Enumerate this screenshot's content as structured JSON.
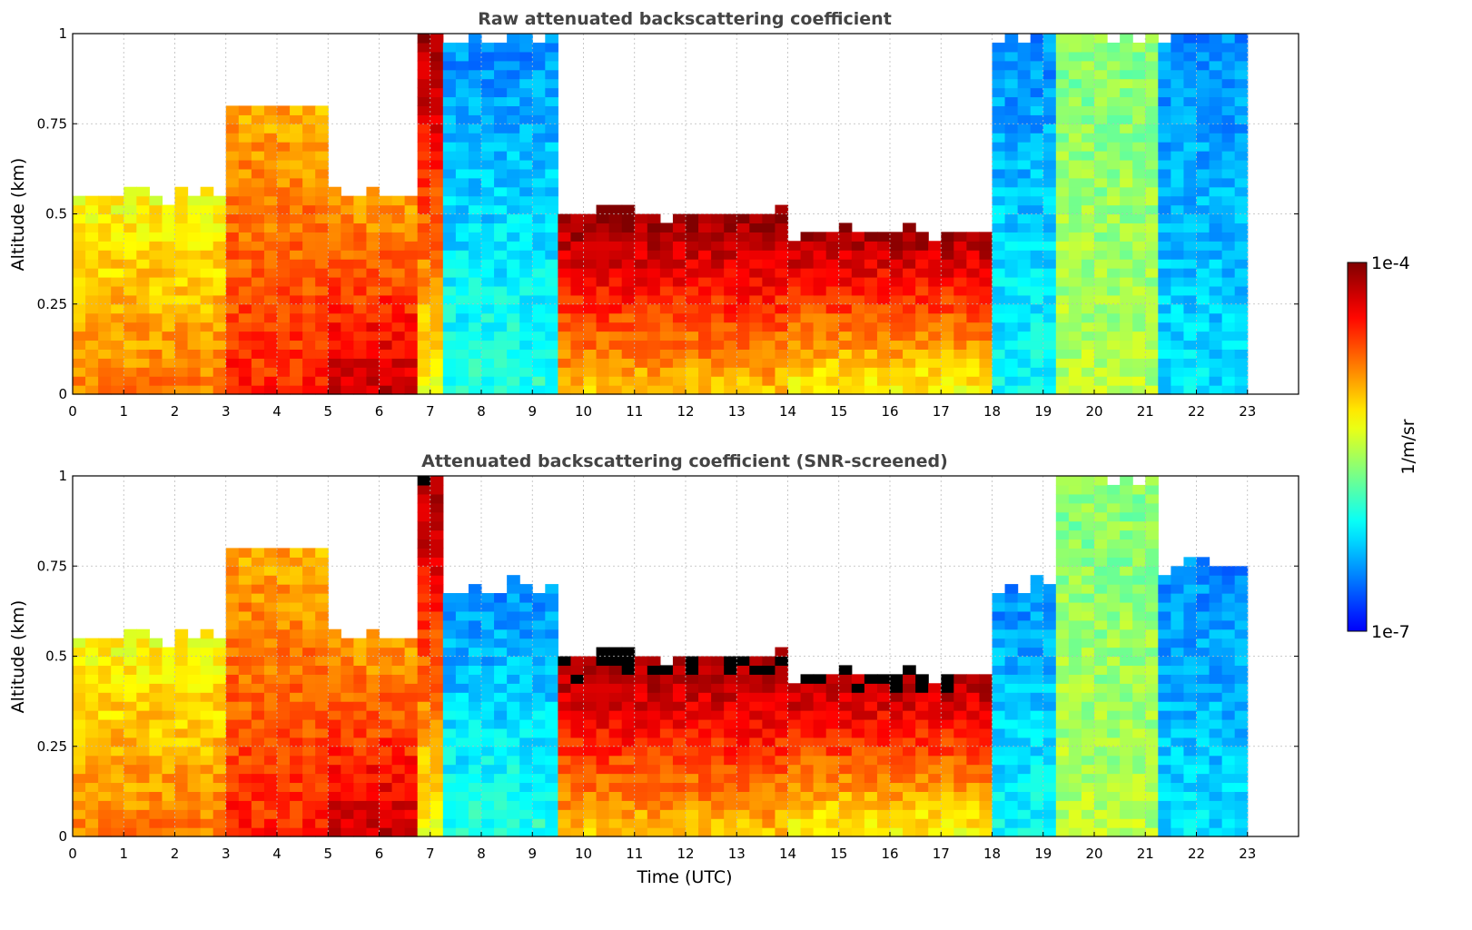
{
  "chart_data": [
    {
      "type": "heatmap",
      "title": "Raw attenuated backscattering coefficient",
      "xlabel": "",
      "ylabel": "Altitude (km)",
      "xlim": [
        0,
        24
      ],
      "ylim": [
        0,
        1
      ],
      "x_ticks": [
        "0",
        "1",
        "2",
        "3",
        "4",
        "5",
        "6",
        "7",
        "8",
        "9",
        "10",
        "11",
        "12",
        "13",
        "14",
        "15",
        "16",
        "17",
        "18",
        "19",
        "20",
        "21",
        "22",
        "23"
      ],
      "y_ticks": [
        "0",
        "0.25",
        "0.5",
        "0.75",
        "1"
      ],
      "grid": true,
      "data_extent_hours": [
        0,
        23
      ],
      "value_scale": "log",
      "segments": [
        {
          "start": 0.0,
          "end": 3.0,
          "top": 0.55,
          "ground": 1.5e-05,
          "top_value": 5e-06
        },
        {
          "start": 3.0,
          "end": 4.9,
          "top": 0.8,
          "ground": 3e-05,
          "top_value": 1e-05
        },
        {
          "start": 4.9,
          "end": 6.8,
          "top": 0.55,
          "ground": 6e-05,
          "top_value": 1e-05
        },
        {
          "start": 6.8,
          "end": 7.3,
          "top": 1.0,
          "ground": 5e-06,
          "top_value": 8e-05
        },
        {
          "start": 7.3,
          "end": 9.5,
          "top": 1.0,
          "ground": 1e-06,
          "top_value": 3e-07
        },
        {
          "start": 9.5,
          "end": 14.0,
          "top": 0.5,
          "ground": 8e-06,
          "top_value": 9e-05
        },
        {
          "start": 14.0,
          "end": 18.0,
          "top": 0.45,
          "ground": 5e-06,
          "top_value": 8e-05
        },
        {
          "start": 18.0,
          "end": 19.3,
          "top": 1.0,
          "ground": 8e-07,
          "top_value": 3e-07
        },
        {
          "start": 19.3,
          "end": 21.3,
          "top": 1.0,
          "ground": 3e-06,
          "top_value": 2e-06
        },
        {
          "start": 21.3,
          "end": 23.0,
          "top": 1.0,
          "ground": 6e-07,
          "top_value": 3e-07
        }
      ]
    },
    {
      "type": "heatmap",
      "title": "Attenuated backscattering coefficient (SNR-screened)",
      "xlabel": "Time (UTC)",
      "ylabel": "Altitude (km)",
      "xlim": [
        0,
        24
      ],
      "ylim": [
        0,
        1
      ],
      "x_ticks": [
        "0",
        "1",
        "2",
        "3",
        "4",
        "5",
        "6",
        "7",
        "8",
        "9",
        "10",
        "11",
        "12",
        "13",
        "14",
        "15",
        "16",
        "17",
        "18",
        "19",
        "20",
        "21",
        "22",
        "23"
      ],
      "y_ticks": [
        "0",
        "0.25",
        "0.5",
        "0.75",
        "1"
      ],
      "grid": true,
      "data_extent_hours": [
        0,
        23
      ],
      "value_scale": "log",
      "saturated_color": "#000000",
      "segments": [
        {
          "start": 0.0,
          "end": 3.0,
          "top": 0.55,
          "ground": 1.5e-05,
          "top_value": 5e-06
        },
        {
          "start": 3.0,
          "end": 4.9,
          "top": 0.8,
          "ground": 3e-05,
          "top_value": 1e-05
        },
        {
          "start": 4.9,
          "end": 6.8,
          "top": 0.55,
          "ground": 6e-05,
          "top_value": 1e-05
        },
        {
          "start": 6.8,
          "end": 7.3,
          "top": 1.0,
          "ground": 5e-06,
          "top_value": 8e-05
        },
        {
          "start": 7.3,
          "end": 9.5,
          "top": 0.7,
          "ground": 1e-06,
          "top_value": 3e-07
        },
        {
          "start": 9.5,
          "end": 14.0,
          "top": 0.5,
          "ground": 8e-06,
          "top_value": 9e-05
        },
        {
          "start": 14.0,
          "end": 18.0,
          "top": 0.45,
          "ground": 5e-06,
          "top_value": 8e-05
        },
        {
          "start": 18.0,
          "end": 19.3,
          "top": 0.7,
          "ground": 8e-07,
          "top_value": 3e-07
        },
        {
          "start": 19.3,
          "end": 21.3,
          "top": 1.0,
          "ground": 3e-06,
          "top_value": 2e-06
        },
        {
          "start": 21.3,
          "end": 23.0,
          "top": 0.75,
          "ground": 6e-07,
          "top_value": 3e-07
        }
      ]
    }
  ],
  "colorbar": {
    "label": "1/m/sr",
    "max_label": "1e-4",
    "min_label": "1e-7",
    "colormap": "jet",
    "scale": "log",
    "range": [
      1e-07,
      0.0001
    ]
  }
}
